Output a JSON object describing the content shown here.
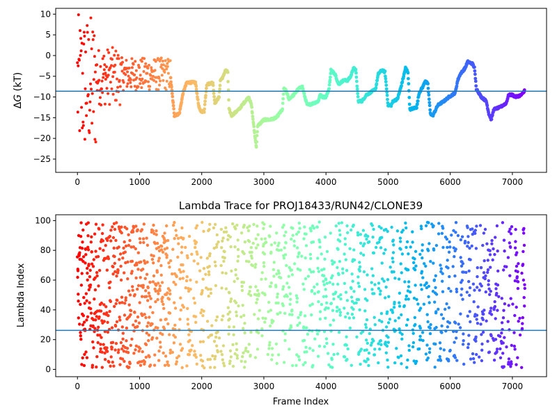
{
  "chart_data": [
    {
      "type": "scatter",
      "title": "",
      "ylabel_italic": "G",
      "ylabel_prefix": "Δ",
      "ylabel_suffix": " (kT)",
      "xlabel": "",
      "xlim": [
        -350,
        7550
      ],
      "ylim": [
        -28.2,
        11.4
      ],
      "xticks": [
        0,
        1000,
        2000,
        3000,
        4000,
        5000,
        6000,
        7000
      ],
      "yticks": [
        10,
        5,
        0,
        -5,
        -10,
        -15,
        -20,
        -25
      ],
      "hline": -8.6,
      "hline_color": "#1f77b4",
      "colormap": "rainbow",
      "x_max_frame": 7200,
      "trace_keyframes": [
        [
          1500,
          -5.5
        ],
        [
          1560,
          -14.5
        ],
        [
          1640,
          -14
        ],
        [
          1700,
          -9
        ],
        [
          1760,
          -6.5
        ],
        [
          1900,
          -6.5
        ],
        [
          1950,
          -12
        ],
        [
          1980,
          -13.5
        ],
        [
          2040,
          -13.5
        ],
        [
          2080,
          -7
        ],
        [
          2180,
          -6.5
        ],
        [
          2210,
          -11.5
        ],
        [
          2280,
          -10
        ],
        [
          2300,
          -6
        ],
        [
          2350,
          -5
        ],
        [
          2380,
          -3.5
        ],
        [
          2420,
          -4
        ],
        [
          2440,
          -13
        ],
        [
          2480,
          -14.5
        ],
        [
          2600,
          -13
        ],
        [
          2650,
          -12
        ],
        [
          2700,
          -11
        ],
        [
          2760,
          -10
        ],
        [
          2800,
          -12
        ],
        [
          2860,
          -20
        ],
        [
          2880,
          -22
        ],
        [
          2900,
          -17
        ],
        [
          3000,
          -15.5
        ],
        [
          3100,
          -15.5
        ],
        [
          3200,
          -15
        ],
        [
          3300,
          -13
        ],
        [
          3320,
          -8
        ],
        [
          3360,
          -8.5
        ],
        [
          3400,
          -10.5
        ],
        [
          3480,
          -9.5
        ],
        [
          3560,
          -8
        ],
        [
          3620,
          -7.5
        ],
        [
          3660,
          -10
        ],
        [
          3700,
          -12
        ],
        [
          3800,
          -11.5
        ],
        [
          3880,
          -11
        ],
        [
          3900,
          -9.5
        ],
        [
          3950,
          -10
        ],
        [
          4000,
          -10
        ],
        [
          4050,
          -8
        ],
        [
          4080,
          -3.5
        ],
        [
          4150,
          -4.5
        ],
        [
          4200,
          -7
        ],
        [
          4280,
          -6
        ],
        [
          4350,
          -6
        ],
        [
          4400,
          -5
        ],
        [
          4440,
          -3
        ],
        [
          4480,
          -3.5
        ],
        [
          4520,
          -11
        ],
        [
          4580,
          -11
        ],
        [
          4650,
          -9.5
        ],
        [
          4760,
          -8.5
        ],
        [
          4800,
          -8
        ],
        [
          4840,
          -4.5
        ],
        [
          4900,
          -3.5
        ],
        [
          4950,
          -4
        ],
        [
          5000,
          -12
        ],
        [
          5050,
          -12
        ],
        [
          5080,
          -11
        ],
        [
          5150,
          -10.5
        ],
        [
          5200,
          -8
        ],
        [
          5250,
          -5
        ],
        [
          5280,
          -3
        ],
        [
          5320,
          -4
        ],
        [
          5350,
          -13
        ],
        [
          5460,
          -12.5
        ],
        [
          5500,
          -9
        ],
        [
          5560,
          -7.5
        ],
        [
          5600,
          -6
        ],
        [
          5640,
          -7
        ],
        [
          5680,
          -14
        ],
        [
          5720,
          -14.5
        ],
        [
          5800,
          -12
        ],
        [
          5900,
          -11
        ],
        [
          5980,
          -10
        ],
        [
          6080,
          -9
        ],
        [
          6120,
          -6
        ],
        [
          6160,
          -4.5
        ],
        [
          6240,
          -3
        ],
        [
          6280,
          -1.5
        ],
        [
          6360,
          -2
        ],
        [
          6390,
          -3
        ],
        [
          6420,
          -8
        ],
        [
          6500,
          -10
        ],
        [
          6580,
          -11
        ],
        [
          6620,
          -14
        ],
        [
          6660,
          -15.5
        ],
        [
          6700,
          -13
        ],
        [
          6800,
          -12.5
        ],
        [
          6900,
          -11.5
        ],
        [
          6940,
          -9.5
        ],
        [
          7000,
          -9.5
        ],
        [
          7050,
          -10
        ],
        [
          7150,
          -9.5
        ],
        [
          7200,
          -8.3
        ]
      ]
    },
    {
      "type": "scatter",
      "title": "Lambda Trace for PROJ18433/RUN42/CLONE39",
      "ylabel": "Lambda Index",
      "xlabel": "Frame Index",
      "xlim": [
        -350,
        7550
      ],
      "ylim": [
        -4.9,
        103.9
      ],
      "xticks": [
        0,
        1000,
        2000,
        3000,
        4000,
        5000,
        6000,
        7000
      ],
      "yticks": [
        100,
        80,
        60,
        40,
        20,
        0
      ],
      "hline": 26.2,
      "hline_color": "#1f77b4",
      "colormap": "rainbow",
      "x_max_frame": 7200
    }
  ]
}
